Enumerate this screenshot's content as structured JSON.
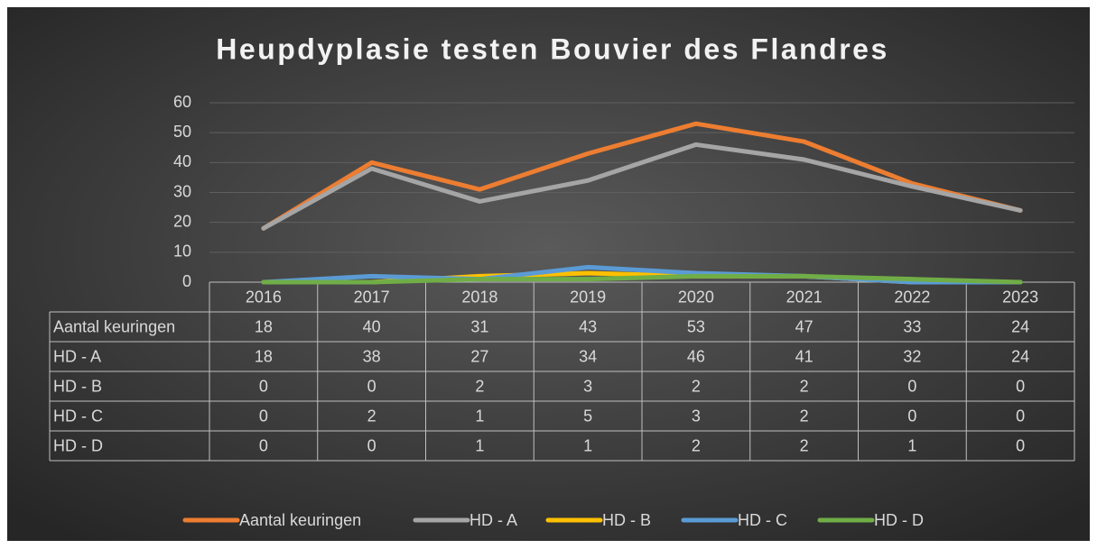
{
  "chart_data": {
    "type": "line",
    "title": "Heupdyplasie testen Bouvier des Flandres",
    "categories": [
      "2016",
      "2017",
      "2018",
      "2019",
      "2020",
      "2021",
      "2022",
      "2023"
    ],
    "series": [
      {
        "name": "Aantal keuringen",
        "color": "#ed7d31",
        "values": [
          18,
          40,
          31,
          43,
          53,
          47,
          33,
          24
        ]
      },
      {
        "name": "HD - A",
        "color": "#a5a5a5",
        "values": [
          18,
          38,
          27,
          34,
          46,
          41,
          32,
          24
        ]
      },
      {
        "name": "HD - B",
        "color": "#ffc000",
        "values": [
          0,
          0,
          2,
          3,
          2,
          2,
          0,
          0
        ]
      },
      {
        "name": "HD - C",
        "color": "#5b9bd5",
        "values": [
          0,
          2,
          1,
          5,
          3,
          2,
          0,
          0
        ]
      },
      {
        "name": "HD - D",
        "color": "#70ad47",
        "values": [
          0,
          0,
          1,
          1,
          2,
          2,
          1,
          0
        ]
      }
    ],
    "ylim": [
      0,
      60
    ],
    "yticks": [
      0,
      10,
      20,
      30,
      40,
      50,
      60
    ],
    "grid": true,
    "data_table": true,
    "legend": "bottom"
  }
}
